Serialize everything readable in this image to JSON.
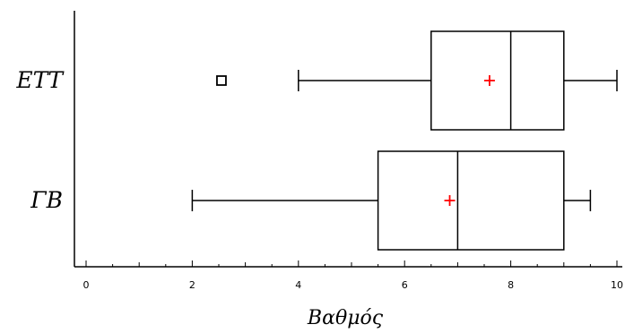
{
  "chart_data": {
    "type": "boxplot",
    "orientation": "horizontal",
    "xlabel": "Βαθμός",
    "xlim": [
      0,
      10
    ],
    "xticks": [
      "0",
      "2",
      "4",
      "6",
      "8",
      "10"
    ],
    "grid": false,
    "series": [
      {
        "category": "ΕΤΤ",
        "whisker_low": 4,
        "q1": 6.5,
        "median": 8,
        "q3": 9,
        "whisker_high": 10,
        "mean": 7.6,
        "outliers": [
          2.55
        ]
      },
      {
        "category": "ΓΒ",
        "whisker_low": 2,
        "q1": 5.5,
        "median": 7,
        "q3": 9,
        "whisker_high": 9.5,
        "mean": 6.85,
        "outliers": []
      }
    ],
    "colors": {
      "box": "#000000",
      "mean_marker": "#ff0000",
      "outlier": "#000000"
    }
  }
}
